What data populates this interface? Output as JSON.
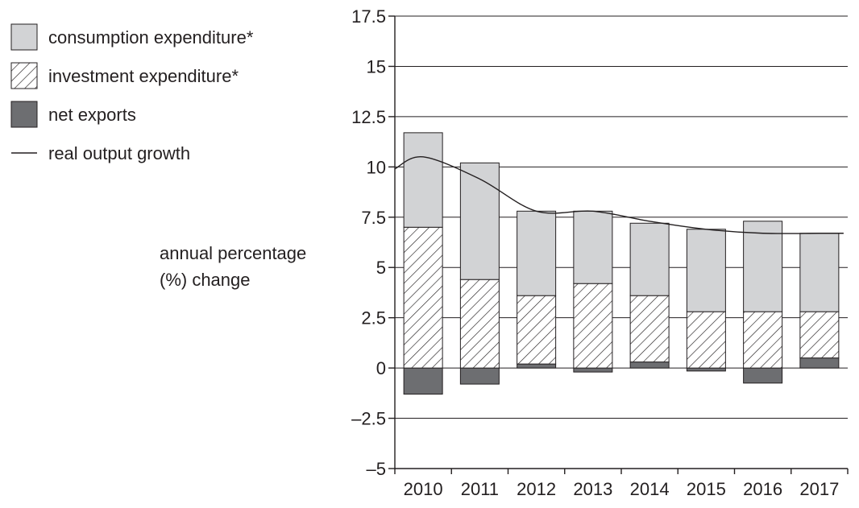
{
  "chart_data": {
    "type": "bar",
    "stacked": true,
    "categories": [
      "2010",
      "2011",
      "2012",
      "2013",
      "2014",
      "2015",
      "2016",
      "2017"
    ],
    "series": [
      {
        "name": "consumption expenditure*",
        "fill": "light-grey",
        "color": "#d2d3d5",
        "values": [
          4.7,
          5.8,
          4.2,
          3.6,
          3.6,
          4.1,
          4.5,
          3.9
        ]
      },
      {
        "name": "investment expenditure*",
        "fill": "hatched",
        "values": [
          7.0,
          4.4,
          3.4,
          4.2,
          3.3,
          2.8,
          2.8,
          2.3
        ]
      },
      {
        "name": "net exports",
        "fill": "dark-grey",
        "color": "#6d6e71",
        "values": [
          -1.3,
          -0.8,
          0.2,
          -0.2,
          0.3,
          -0.15,
          -0.75,
          0.5
        ]
      }
    ],
    "line_series": {
      "name": "real output growth",
      "color": "#231f20",
      "x": [
        "2010",
        "2011",
        "2012",
        "2013",
        "2014",
        "2015",
        "2016",
        "2017"
      ],
      "values": [
        10.5,
        9.4,
        7.8,
        7.8,
        7.3,
        6.9,
        6.7,
        6.7
      ],
      "start_value": 9.9
    },
    "ylabel_lines": [
      "annual percentage",
      "(%) change"
    ],
    "ylim": [
      -5,
      17.5
    ],
    "yticks": [
      17.5,
      15,
      12.5,
      10,
      7.5,
      5,
      2.5,
      0,
      -2.5,
      -5
    ],
    "ytick_labels": [
      "17.5",
      "15",
      "12.5",
      "10",
      "7.5",
      "5",
      "2.5",
      "0",
      "–2.5",
      "–5"
    ],
    "grid": true,
    "legend_position": "top-left",
    "legend": [
      {
        "label": "consumption expenditure*",
        "icon": "light-grey-swatch"
      },
      {
        "label": "investment expenditure*",
        "icon": "hatched-swatch"
      },
      {
        "label": "net exports",
        "icon": "dark-grey-swatch"
      },
      {
        "label": "real output growth",
        "icon": "line-swatch"
      }
    ]
  }
}
